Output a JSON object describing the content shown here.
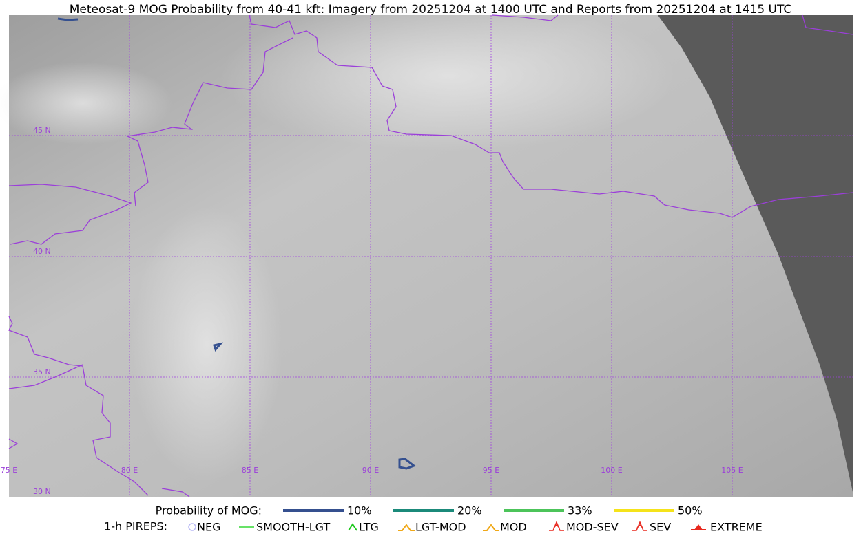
{
  "title": "Meteosat-9 MOG Probability from 40-41 kft: Imagery from 20251204 at 1400 UTC and Reports from 20251204 at 1415 UTC",
  "map": {
    "lat_labels": [
      "45 N",
      "40 N",
      "35 N",
      "30 N"
    ],
    "lon_labels": [
      "75 E",
      "80 E",
      "85 E",
      "90 E",
      "95 E",
      "100 E",
      "105 E"
    ]
  },
  "legend": {
    "probability": {
      "title": "Probability of MOG:",
      "entries": [
        {
          "label": "10%",
          "color": "#35508f"
        },
        {
          "label": "20%",
          "color": "#1b8a7a"
        },
        {
          "label": "33%",
          "color": "#4cc45a"
        },
        {
          "label": "50%",
          "color": "#f5e31a"
        }
      ]
    },
    "pireps": {
      "title": "1-h PIREPS:",
      "entries": [
        {
          "label": "NEG",
          "color": "#b9b9f5"
        },
        {
          "label": "SMOOTH-LGT",
          "color": "#36d936"
        },
        {
          "label": "LTG",
          "color": "#1ec81e"
        },
        {
          "label": "LGT-MOD",
          "color": "#f0a818"
        },
        {
          "label": "MOD",
          "color": "#f0a818"
        },
        {
          "label": "MOD-SEV",
          "color": "#e8281e"
        },
        {
          "label": "SEV",
          "color": "#e8281e"
        },
        {
          "label": "EXTREME",
          "color": "#e8281e"
        }
      ]
    }
  }
}
